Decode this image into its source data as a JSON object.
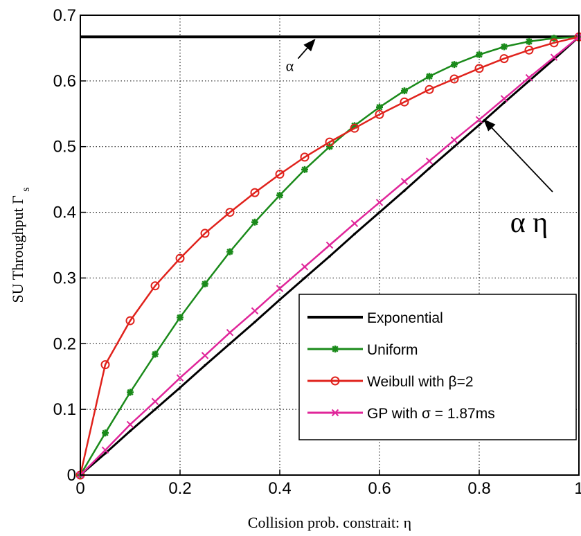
{
  "chart_data": {
    "type": "line",
    "title": "",
    "xlabel": "Collision prob. constrait: η",
    "ylabel_main": "SU Throughput Γ",
    "ylabel_sub": "s",
    "xlim": [
      0,
      1
    ],
    "ylim": [
      0,
      0.7
    ],
    "xticks": [
      0,
      0.2,
      0.4,
      0.6,
      0.8,
      1
    ],
    "xtick_labels": [
      "0",
      "0.2",
      "0.4",
      "0.6",
      "0.8",
      "1"
    ],
    "yticks": [
      0,
      0.1,
      0.2,
      0.3,
      0.4,
      0.5,
      0.6,
      0.7
    ],
    "ytick_labels": [
      "0",
      "0.1",
      "0.2",
      "0.3",
      "0.4",
      "0.5",
      "0.6",
      "0.7"
    ],
    "grid": true,
    "legend_position": "bottom-right",
    "x": [
      0,
      0.05,
      0.1,
      0.15,
      0.2,
      0.25,
      0.3,
      0.35,
      0.4,
      0.45,
      0.5,
      0.55,
      0.6,
      0.65,
      0.7,
      0.75,
      0.8,
      0.85,
      0.9,
      0.95,
      1.0
    ],
    "series": [
      {
        "name": "Exponential",
        "color": "#000000",
        "marker": "dot",
        "values": [
          0,
          0.033,
          0.067,
          0.1,
          0.133,
          0.167,
          0.2,
          0.233,
          0.267,
          0.3,
          0.333,
          0.367,
          0.4,
          0.433,
          0.467,
          0.5,
          0.533,
          0.567,
          0.6,
          0.633,
          0.667
        ]
      },
      {
        "name": "Uniform",
        "color": "#1a8a1a",
        "marker": "star",
        "values": [
          0,
          0.064,
          0.126,
          0.184,
          0.24,
          0.291,
          0.34,
          0.385,
          0.426,
          0.465,
          0.5,
          0.532,
          0.56,
          0.585,
          0.607,
          0.625,
          0.64,
          0.652,
          0.66,
          0.665,
          0.667
        ]
      },
      {
        "name": "Weibull with β=2",
        "color": "#e0221c",
        "marker": "circle",
        "values": [
          0,
          0.168,
          0.235,
          0.288,
          0.33,
          0.368,
          0.4,
          0.43,
          0.458,
          0.484,
          0.507,
          0.528,
          0.549,
          0.568,
          0.587,
          0.603,
          0.619,
          0.634,
          0.647,
          0.658,
          0.667
        ]
      },
      {
        "name": "GP with σ = 1.87ms",
        "color": "#e0269a",
        "marker": "x",
        "values": [
          0,
          0.038,
          0.077,
          0.112,
          0.148,
          0.182,
          0.217,
          0.25,
          0.284,
          0.317,
          0.35,
          0.383,
          0.415,
          0.447,
          0.478,
          0.51,
          0.541,
          0.573,
          0.605,
          0.636,
          0.667
        ]
      }
    ],
    "hline": {
      "y": 0.667,
      "color": "#000000"
    },
    "annotations": [
      {
        "text": "α",
        "x": 0.42,
        "y": 0.615,
        "arrow_to": [
          0.47,
          0.667
        ],
        "size": "small"
      },
      {
        "text": "α η",
        "x": 0.9,
        "y": 0.37,
        "arrow_to": [
          0.81,
          0.545
        ],
        "size": "large"
      }
    ]
  }
}
